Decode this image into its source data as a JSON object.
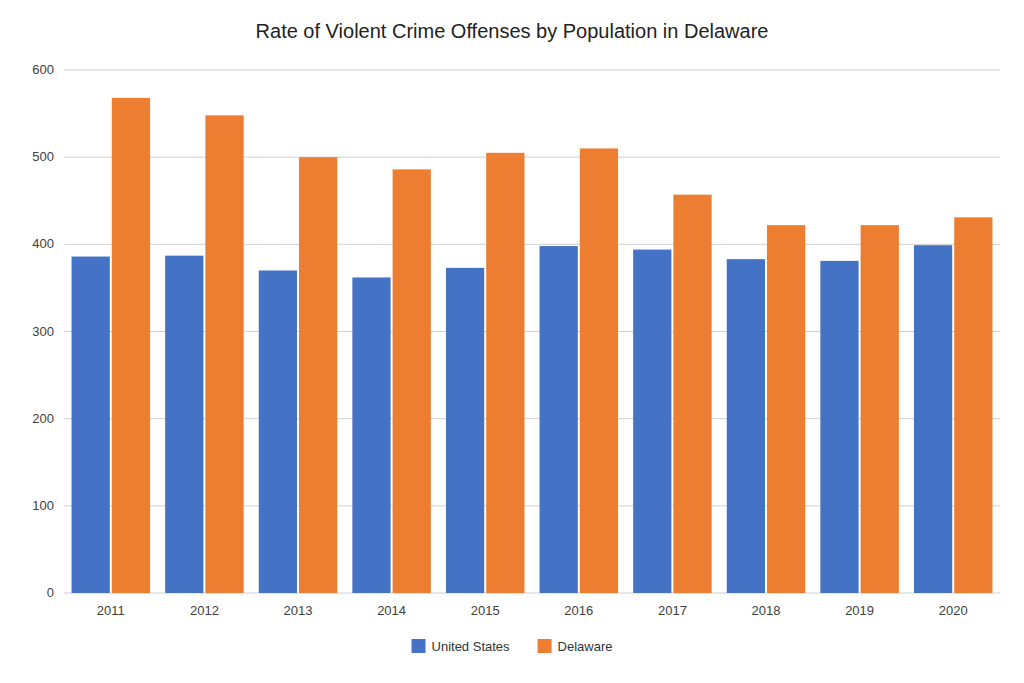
{
  "chart_data": {
    "type": "bar",
    "title": "Rate of Violent Crime Offenses by Population in Delaware",
    "categories": [
      "2011",
      "2012",
      "2013",
      "2014",
      "2015",
      "2016",
      "2017",
      "2018",
      "2019",
      "2020"
    ],
    "series": [
      {
        "name": "United States",
        "color": "#4472C4",
        "values": [
          386,
          387,
          370,
          362,
          373,
          398,
          394,
          383,
          381,
          399
        ]
      },
      {
        "name": "Delaware",
        "color": "#ED7D31",
        "values": [
          568,
          548,
          500,
          486,
          505,
          510,
          457,
          422,
          422,
          431
        ]
      }
    ],
    "ylim": [
      0,
      600
    ],
    "yticks": [
      0,
      100,
      200,
      300,
      400,
      500,
      600
    ],
    "grid": true,
    "legend": "bottom"
  }
}
